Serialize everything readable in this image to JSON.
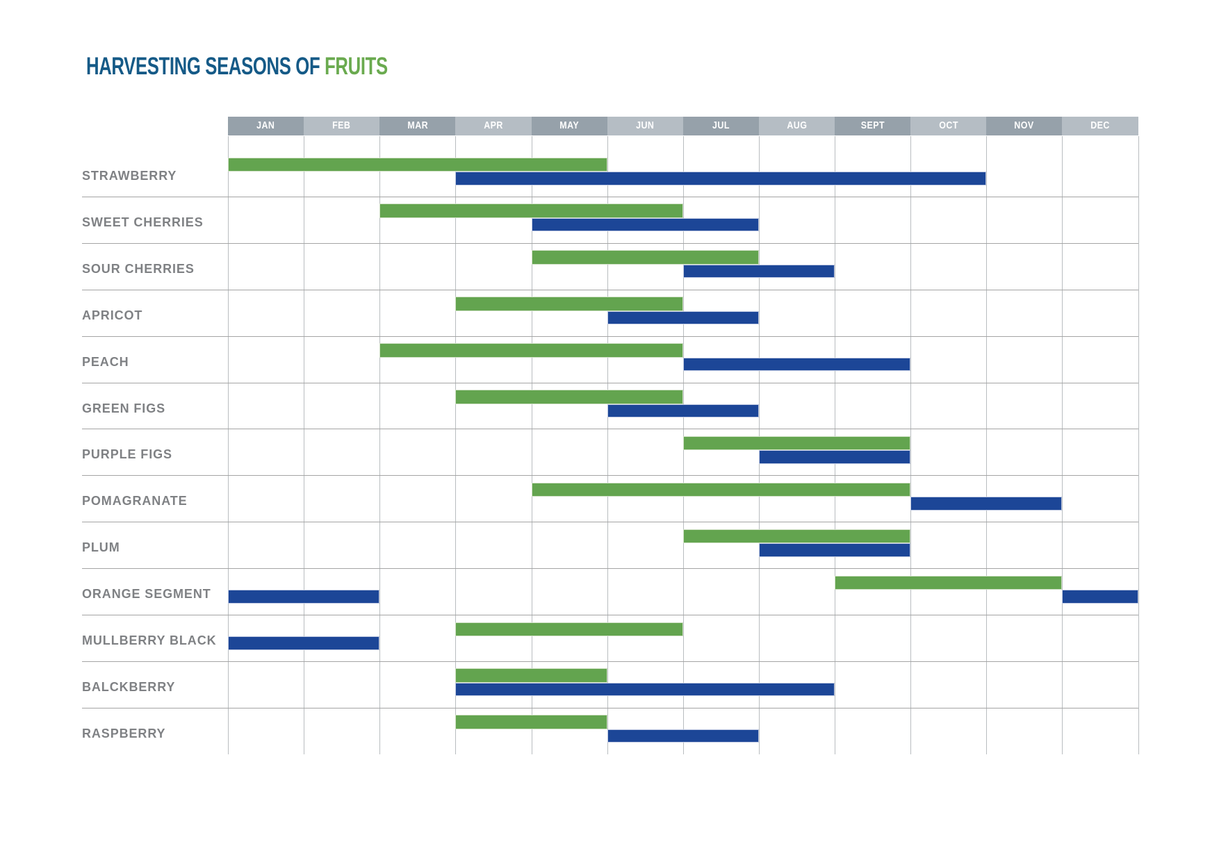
{
  "title": {
    "prefix": "HARVESTING SEASONS OF ",
    "highlight": "FRUITS"
  },
  "colors": {
    "title_blue": "#155a87",
    "title_green": "#6aaa4f",
    "bar_green": "#63a44f",
    "bar_blue": "#1c4697",
    "bar_green_edge": "#cfe0c4",
    "bar_blue_edge": "#bfc9e2",
    "header_dark": "#96a1aa",
    "header_light": "#b5bdc4",
    "label_gray": "#7f8184",
    "vline_gray": "#b9bdc0",
    "hline_gray": "#a4a4a4"
  },
  "chart_data": {
    "type": "gantt",
    "title": "HARVESTING SEASONS OF FRUITS",
    "months": [
      "JAN",
      "FEB",
      "MAR",
      "APR",
      "MAY",
      "JUN",
      "JUL",
      "AUG",
      "SEPT",
      "OCT",
      "NOV",
      "DEC"
    ],
    "unit_note": "bar spans are in month indexes, 0 = Jan 1, 12 = Dec 31",
    "rows": [
      {
        "label": "STRAWBERRY",
        "green": [
          [
            0,
            5
          ]
        ],
        "blue": [
          [
            3,
            10
          ]
        ]
      },
      {
        "label": "SWEET CHERRIES",
        "green": [
          [
            2,
            6
          ]
        ],
        "blue": [
          [
            4,
            7
          ]
        ]
      },
      {
        "label": "SOUR CHERRIES",
        "green": [
          [
            4,
            7
          ]
        ],
        "blue": [
          [
            6,
            8
          ]
        ]
      },
      {
        "label": "APRICOT",
        "green": [
          [
            3,
            6
          ]
        ],
        "blue": [
          [
            5,
            7
          ]
        ]
      },
      {
        "label": "PEACH",
        "green": [
          [
            2,
            6
          ]
        ],
        "blue": [
          [
            6,
            9
          ]
        ]
      },
      {
        "label": "GREEN FIGS",
        "green": [
          [
            3,
            6
          ]
        ],
        "blue": [
          [
            5,
            7
          ]
        ]
      },
      {
        "label": "PURPLE FIGS",
        "green": [
          [
            6,
            9
          ]
        ],
        "blue": [
          [
            7,
            9
          ]
        ]
      },
      {
        "label": "POMAGRANATE",
        "green": [
          [
            4,
            9
          ]
        ],
        "blue": [
          [
            9,
            11
          ]
        ]
      },
      {
        "label": "PLUM",
        "green": [
          [
            6,
            9
          ]
        ],
        "blue": [
          [
            7,
            9
          ]
        ]
      },
      {
        "label": "ORANGE SEGMENT",
        "green": [
          [
            8,
            11
          ]
        ],
        "blue": [
          [
            0,
            2
          ],
          [
            11,
            12
          ]
        ]
      },
      {
        "label": "MULLBERRY BLACK",
        "green": [
          [
            3,
            6
          ]
        ],
        "blue": [
          [
            0,
            2
          ]
        ]
      },
      {
        "label": "BALCKBERRY",
        "green": [
          [
            3,
            5
          ]
        ],
        "blue": [
          [
            3,
            8
          ]
        ]
      },
      {
        "label": "RASPBERRY",
        "green": [
          [
            3,
            5
          ]
        ],
        "blue": [
          [
            5,
            7
          ]
        ]
      }
    ]
  }
}
